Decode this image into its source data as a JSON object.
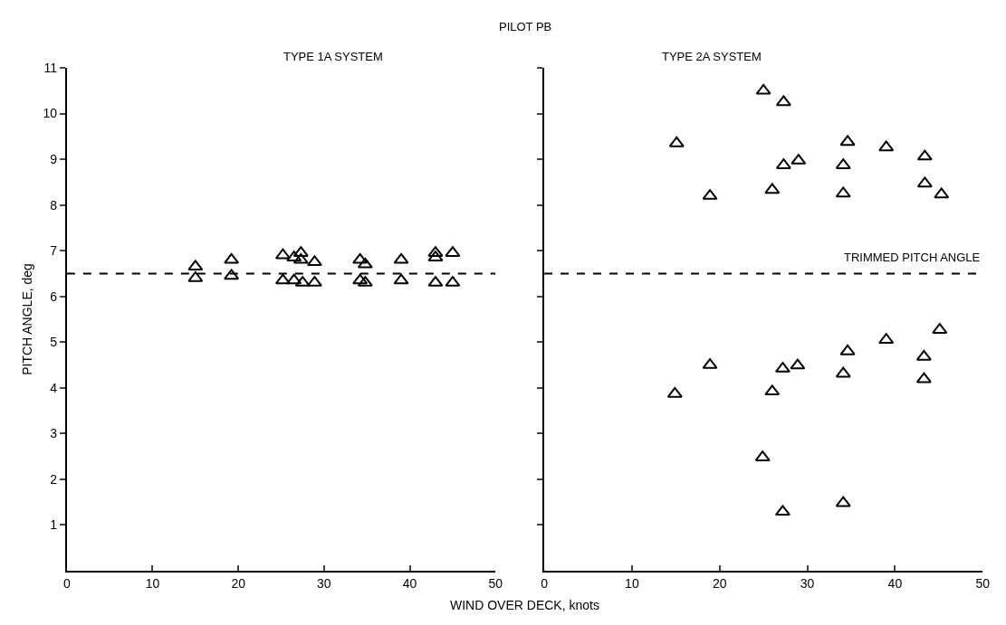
{
  "chart_data": [
    {
      "type": "scatter",
      "title": "TYPE 1A SYSTEM",
      "annotations": [
        "PILOT PB"
      ],
      "xlabel": "WIND OVER DECK, knots",
      "ylabel": "PITCH ANGLE, deg",
      "x": [
        15,
        15,
        19.2,
        19.2,
        25.2,
        25.2,
        26.5,
        26.5,
        27.3,
        27.3,
        27.5,
        28.9,
        28.9,
        34.2,
        34.2,
        34.8,
        34.8,
        39,
        39,
        43,
        43,
        43,
        45,
        45
      ],
      "series": [
        {
          "color": "#000000",
          "values": [
            6.65,
            6.4,
            6.8,
            6.45,
            6.9,
            6.35,
            6.85,
            6.35,
            6.95,
            6.8,
            6.3,
            6.75,
            6.3,
            6.8,
            6.35,
            6.7,
            6.3,
            6.8,
            6.35,
            6.95,
            6.85,
            6.3,
            6.95,
            6.3
          ]
        }
      ],
      "marker": "triangle",
      "xlim": [
        0,
        50
      ],
      "xticks": [
        0,
        10,
        20,
        30,
        40,
        50
      ],
      "ylim": [
        0,
        11
      ],
      "yticks": [
        1,
        2,
        3,
        4,
        5,
        6,
        7,
        8,
        9,
        10,
        11
      ],
      "ref_lines": [
        {
          "axis": "y",
          "value": 6.5,
          "line_style": "dashed",
          "color": "#000000"
        }
      ],
      "grid": false,
      "legend": false
    },
    {
      "type": "scatter",
      "title": "TYPE 2A SYSTEM",
      "x": [
        25,
        27.3,
        15.1,
        18.9,
        26,
        27.3,
        29,
        34.1,
        34.6,
        34.1,
        39,
        43.4,
        43.4,
        45.3,
        14.9,
        18.9,
        26,
        27.2,
        28.9,
        34.1,
        34.6,
        39,
        43.3,
        43.3,
        45.1,
        24.9,
        27.2,
        34.1
      ],
      "series": [
        {
          "color": "#000000",
          "values": [
            10.5,
            10.25,
            9.35,
            8.2,
            8.33,
            8.87,
            8.97,
            8.87,
            9.38,
            8.25,
            9.26,
            9.06,
            8.47,
            8.23,
            3.87,
            4.5,
            3.92,
            4.42,
            4.49,
            4.31,
            4.8,
            5.05,
            4.68,
            4.19,
            5.27,
            2.48,
            1.29,
            1.48
          ]
        }
      ],
      "marker": "triangle",
      "xlim": [
        0,
        50
      ],
      "xticks": [
        0,
        10,
        20,
        30,
        40,
        50
      ],
      "ylim": [
        0,
        11
      ],
      "yticks": [
        {
          "value": 1,
          "label": null
        },
        {
          "value": 2,
          "label": null
        },
        {
          "value": 3,
          "label": null
        },
        {
          "value": 4,
          "label": null
        },
        {
          "value": 5,
          "label": null
        },
        {
          "value": 6,
          "label": null
        },
        {
          "value": 7,
          "label": null
        },
        {
          "value": 8,
          "label": null
        },
        {
          "value": 9,
          "label": null
        },
        {
          "value": 10,
          "label": null
        },
        {
          "value": 11,
          "label": null
        }
      ],
      "tick_labels": "x",
      "ref_lines": [
        {
          "axis": "y",
          "value": 6.5,
          "label": "TRIMMED PITCH ANGLE",
          "line_style": "dashed",
          "color": "#000000"
        }
      ],
      "grid": false,
      "legend": false
    }
  ]
}
